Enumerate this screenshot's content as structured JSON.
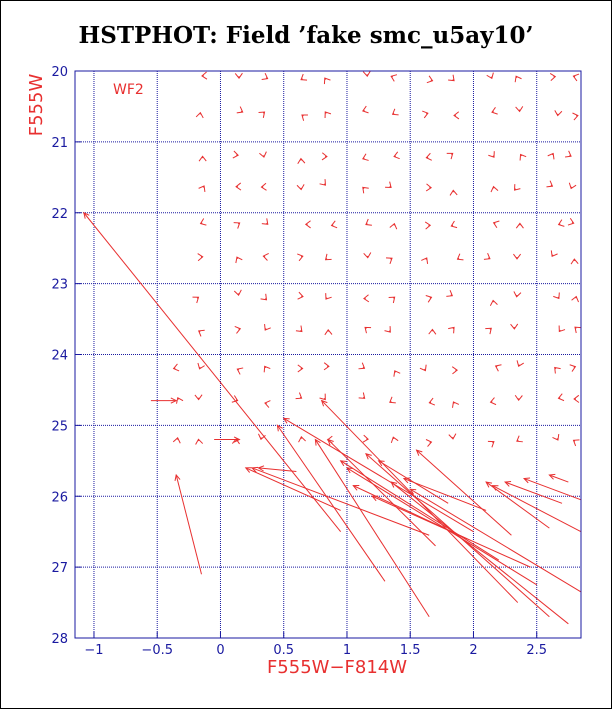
{
  "title": "HSTPHOT: Field ’fake smc_u5ay10’",
  "chart_data": {
    "type": "scatter",
    "title": "HSTPHOT: Field ’fake smc_u5ay10’",
    "xlabel": "F555W−F814W",
    "ylabel": "F555W",
    "panel_label": "WF2",
    "xlim": [
      -1.15,
      2.85
    ],
    "ylim": [
      28,
      20
    ],
    "xticks": [
      -1,
      -0.5,
      0,
      0.5,
      1,
      1.5,
      2,
      2.5
    ],
    "xtick_labels": [
      "−1",
      "−0.5",
      "0",
      "0.5",
      "1",
      "1.5",
      "2",
      "2.5"
    ],
    "yticks": [
      20,
      21,
      22,
      23,
      24,
      25,
      26,
      27,
      28
    ],
    "ytick_labels": [
      "20",
      "21",
      "22",
      "23",
      "24",
      "25",
      "26",
      "27",
      "28"
    ],
    "grid": true,
    "colors": {
      "axes": "#1a1aa0",
      "vectors": "#e83030",
      "title": "#000000"
    },
    "small_vector_rows_y": [
      20.1,
      20.6,
      21.2,
      21.65,
      22.15,
      22.65,
      23.2,
      23.65,
      24.2,
      24.65,
      25.2
    ],
    "small_vector_cols_x": [
      -0.35,
      -0.15,
      0.15,
      0.35,
      0.65,
      0.85,
      1.15,
      1.35,
      1.65,
      1.85,
      2.15,
      2.35,
      2.65,
      2.8
    ],
    "long_vectors": [
      {
        "x1": -0.15,
        "y1": 27.1,
        "x2": -0.35,
        "y2": 25.7
      },
      {
        "x1": -0.55,
        "y1": 24.65,
        "x2": -0.35,
        "y2": 24.65
      },
      {
        "x1": -0.05,
        "y1": 25.2,
        "x2": 0.15,
        "y2": 25.2
      },
      {
        "x1": 0.95,
        "y1": 26.5,
        "x2": -1.08,
        "y2": 22.0
      },
      {
        "x1": 0.95,
        "y1": 26.2,
        "x2": 0.2,
        "y2": 25.6
      },
      {
        "x1": 0.6,
        "y1": 25.65,
        "x2": 0.3,
        "y2": 25.6
      },
      {
        "x1": 1.65,
        "y1": 26.55,
        "x2": 0.25,
        "y2": 25.6
      },
      {
        "x1": 1.3,
        "y1": 27.2,
        "x2": 0.45,
        "y2": 25.0
      },
      {
        "x1": 1.65,
        "y1": 27.7,
        "x2": 0.75,
        "y2": 25.2
      },
      {
        "x1": 2.0,
        "y1": 26.5,
        "x2": 0.5,
        "y2": 24.9
      },
      {
        "x1": 2.2,
        "y1": 26.9,
        "x2": 0.95,
        "y2": 25.5
      },
      {
        "x1": 2.35,
        "y1": 27.5,
        "x2": 0.8,
        "y2": 24.65
      },
      {
        "x1": 2.5,
        "y1": 27.25,
        "x2": 1.0,
        "y2": 25.6
      },
      {
        "x1": 2.6,
        "y1": 27.7,
        "x2": 1.15,
        "y2": 25.4
      },
      {
        "x1": 2.75,
        "y1": 27.8,
        "x2": 1.35,
        "y2": 25.8
      },
      {
        "x1": 2.45,
        "y1": 27.0,
        "x2": 1.2,
        "y2": 26.0
      },
      {
        "x1": 2.85,
        "y1": 27.35,
        "x2": 1.5,
        "y2": 25.9
      },
      {
        "x1": 2.3,
        "y1": 26.55,
        "x2": 1.55,
        "y2": 25.35
      },
      {
        "x1": 2.1,
        "y1": 26.2,
        "x2": 1.45,
        "y2": 25.75
      },
      {
        "x1": 1.95,
        "y1": 26.6,
        "x2": 1.05,
        "y2": 25.85
      },
      {
        "x1": 1.8,
        "y1": 26.1,
        "x2": 1.25,
        "y2": 25.5
      },
      {
        "x1": 1.7,
        "y1": 26.7,
        "x2": 0.85,
        "y2": 25.2
      },
      {
        "x1": 2.6,
        "y1": 26.45,
        "x2": 2.1,
        "y2": 25.8
      },
      {
        "x1": 2.7,
        "y1": 26.1,
        "x2": 2.25,
        "y2": 25.8
      },
      {
        "x1": 2.85,
        "y1": 26.5,
        "x2": 2.15,
        "y2": 25.85
      },
      {
        "x1": 2.85,
        "y1": 26.05,
        "x2": 2.4,
        "y2": 25.75
      },
      {
        "x1": 2.75,
        "y1": 25.8,
        "x2": 2.6,
        "y2": 25.7
      }
    ]
  }
}
